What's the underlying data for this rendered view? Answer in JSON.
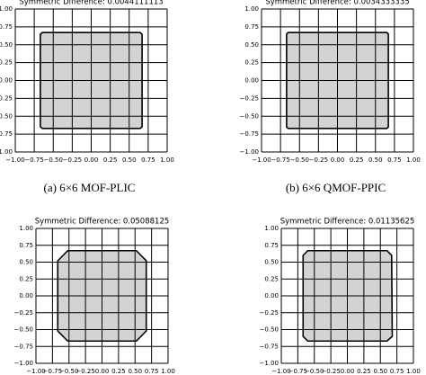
{
  "chart_data": [
    {
      "type": "area",
      "title": "Symmetric Difference: 0.0044111113",
      "caption": "(a) 6×6 MOF-PLIC",
      "x": [
        -0.67,
        -0.645,
        0.645,
        0.67,
        0.67,
        0.645,
        -0.645,
        -0.67
      ],
      "values": [
        0.645,
        0.67,
        0.67,
        0.645,
        -0.645,
        -0.67,
        -0.67,
        -0.645
      ],
      "color": "#d3d3d3",
      "grid": true,
      "xlim": [
        -1,
        1
      ],
      "ylim": [
        -1,
        1
      ],
      "xticks": [
        {
          "value": -1,
          "label": "−1.00"
        },
        {
          "value": -0.75,
          "label": "−0.75"
        },
        {
          "value": -0.5,
          "label": "−0.50"
        },
        {
          "value": -0.25,
          "label": "−0.25"
        },
        {
          "value": 0,
          "label": "0.00"
        },
        {
          "value": 0.25,
          "label": "0.25"
        },
        {
          "value": 0.5,
          "label": "0.50"
        },
        {
          "value": 0.75,
          "label": "0.75"
        },
        {
          "value": 1,
          "label": "1.00"
        }
      ],
      "yticks": [
        {
          "value": -1,
          "label": "−1.00"
        },
        {
          "value": -0.75,
          "label": "−0.75"
        },
        {
          "value": -0.5,
          "label": "−0.50"
        },
        {
          "value": -0.25,
          "label": "−0.25"
        },
        {
          "value": 0,
          "label": "0.00"
        },
        {
          "value": 0.25,
          "label": "0.25"
        },
        {
          "value": 0.5,
          "label": "0.50"
        },
        {
          "value": 0.75,
          "label": "0.75"
        },
        {
          "value": 1,
          "label": "1.00"
        }
      ]
    },
    {
      "type": "area",
      "title": "Symmetric Difference: 0.0034333335",
      "caption": "(b) 6×6 QMOF-PPIC",
      "x": [
        -0.67,
        -0.65,
        0.65,
        0.67,
        0.67,
        0.65,
        -0.65,
        -0.67
      ],
      "values": [
        0.65,
        0.67,
        0.67,
        0.65,
        -0.65,
        -0.67,
        -0.67,
        -0.65
      ],
      "color": "#d3d3d3",
      "grid": true,
      "xlim": [
        -1,
        1
      ],
      "ylim": [
        -1,
        1
      ],
      "xticks": [
        {
          "value": -1,
          "label": "−1.00"
        },
        {
          "value": -0.75,
          "label": "−0.75"
        },
        {
          "value": -0.5,
          "label": "−0.50"
        },
        {
          "value": -0.25,
          "label": "−0.25"
        },
        {
          "value": 0,
          "label": "0.00"
        },
        {
          "value": 0.25,
          "label": "0.25"
        },
        {
          "value": 0.5,
          "label": "0.50"
        },
        {
          "value": 0.75,
          "label": "0.75"
        },
        {
          "value": 1,
          "label": "1.00"
        }
      ],
      "yticks": [
        {
          "value": -1,
          "label": "−1.00"
        },
        {
          "value": -0.75,
          "label": "−0.75"
        },
        {
          "value": -0.5,
          "label": "−0.50"
        },
        {
          "value": -0.25,
          "label": "−0.25"
        },
        {
          "value": 0,
          "label": "0.00"
        },
        {
          "value": 0.25,
          "label": "0.25"
        },
        {
          "value": 0.5,
          "label": "0.50"
        },
        {
          "value": 0.75,
          "label": "0.75"
        },
        {
          "value": 1,
          "label": "1.00"
        }
      ]
    },
    {
      "type": "area",
      "title": "Symmetric Difference: 0.05088125",
      "x": [
        -0.67,
        -0.52,
        0.52,
        0.67,
        0.67,
        0.52,
        -0.52,
        -0.67
      ],
      "values": [
        0.52,
        0.67,
        0.67,
        0.52,
        -0.52,
        -0.67,
        -0.67,
        -0.52
      ],
      "color": "#d3d3d3",
      "grid": true,
      "xlim": [
        -1,
        1
      ],
      "ylim": [
        -1,
        1
      ],
      "xticks": [
        {
          "value": -1,
          "label": "−1.00"
        },
        {
          "value": -0.75,
          "label": "−0.75"
        },
        {
          "value": -0.5,
          "label": "−0.50"
        },
        {
          "value": -0.25,
          "label": "−0.25"
        },
        {
          "value": 0,
          "label": "0.00"
        },
        {
          "value": 0.25,
          "label": "0.25"
        },
        {
          "value": 0.5,
          "label": "0.50"
        },
        {
          "value": 0.75,
          "label": "0.75"
        },
        {
          "value": 1,
          "label": "1.00"
        }
      ],
      "yticks": [
        {
          "value": -1,
          "label": "−1.00"
        },
        {
          "value": -0.75,
          "label": "−0.75"
        },
        {
          "value": -0.5,
          "label": "−0.50"
        },
        {
          "value": -0.25,
          "label": "−0.25"
        },
        {
          "value": 0,
          "label": "0.00"
        },
        {
          "value": 0.25,
          "label": "0.25"
        },
        {
          "value": 0.5,
          "label": "0.50"
        },
        {
          "value": 0.75,
          "label": "0.75"
        },
        {
          "value": 1,
          "label": "1.00"
        }
      ]
    },
    {
      "type": "area",
      "title": "Symmetric Difference: 0.01135625",
      "x": [
        -0.67,
        -0.6,
        0.6,
        0.67,
        0.68,
        0.6,
        -0.6,
        -0.67
      ],
      "values": [
        0.6,
        0.67,
        0.67,
        0.6,
        -0.6,
        -0.67,
        -0.67,
        -0.6
      ],
      "color": "#d3d3d3",
      "grid": true,
      "xlim": [
        -1,
        1
      ],
      "ylim": [
        -1,
        1
      ],
      "xticks": [
        {
          "value": -1,
          "label": "−1.00"
        },
        {
          "value": -0.75,
          "label": "−0.75"
        },
        {
          "value": -0.5,
          "label": "−0.50"
        },
        {
          "value": -0.25,
          "label": "−0.25"
        },
        {
          "value": 0,
          "label": "0.00"
        },
        {
          "value": 0.25,
          "label": "0.25"
        },
        {
          "value": 0.5,
          "label": "0.50"
        },
        {
          "value": 0.75,
          "label": "0.75"
        },
        {
          "value": 1,
          "label": "1.00"
        }
      ],
      "yticks": [
        {
          "value": -1,
          "label": "−1.00"
        },
        {
          "value": -0.75,
          "label": "−0.75"
        },
        {
          "value": -0.5,
          "label": "−0.50"
        },
        {
          "value": -0.25,
          "label": "−0.25"
        },
        {
          "value": 0,
          "label": "0.00"
        },
        {
          "value": 0.25,
          "label": "0.25"
        },
        {
          "value": 0.5,
          "label": "0.50"
        },
        {
          "value": 0.75,
          "label": "0.75"
        },
        {
          "value": 1,
          "label": "1.00"
        }
      ]
    }
  ]
}
